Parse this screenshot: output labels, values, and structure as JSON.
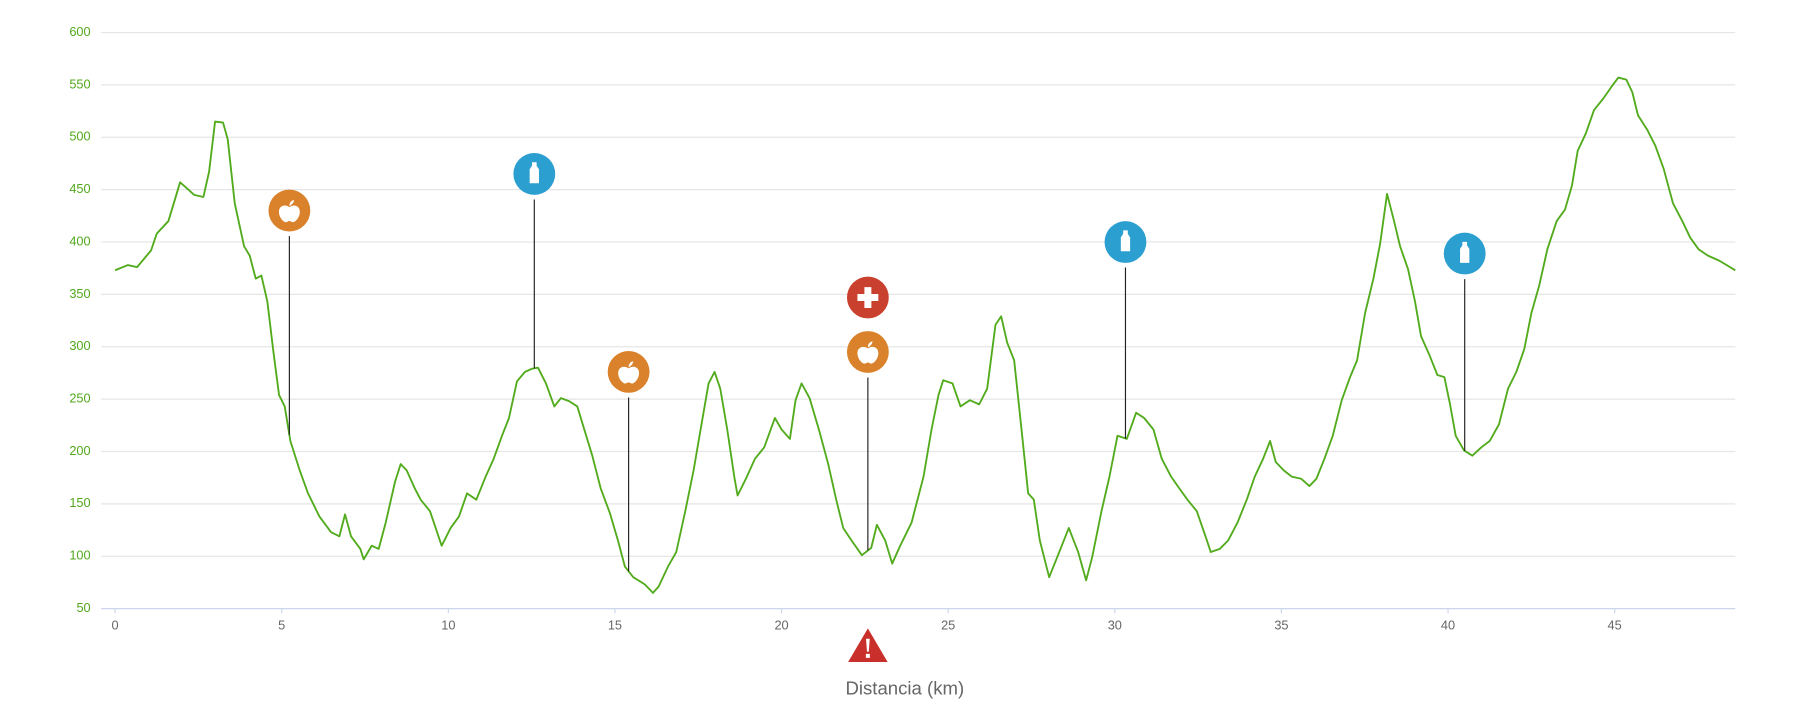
{
  "chart_data": {
    "type": "line",
    "x_label": "Distancia (km)",
    "color": "#52ab1c",
    "grid": true,
    "xlim": [
      -0.42,
      48.62
    ],
    "ylim": [
      50,
      600
    ],
    "xticks": [
      0,
      5,
      10,
      15,
      20,
      25,
      30,
      35,
      40,
      45
    ],
    "yticks": [
      50,
      100,
      150,
      200,
      250,
      300,
      350,
      400,
      450,
      500,
      550,
      600
    ],
    "x": [
      0,
      0.38,
      0.66,
      1.08,
      1.25,
      1.6,
      1.95,
      2.13,
      2.37,
      2.65,
      2.82,
      3.0,
      3.24,
      3.38,
      3.59,
      3.87,
      4.04,
      4.22,
      4.39,
      4.57,
      4.74,
      4.92,
      5.09,
      5.26,
      5.54,
      5.79,
      6.13,
      6.48,
      6.73,
      6.9,
      7.08,
      7.36,
      7.46,
      7.7,
      7.91,
      8.12,
      8.4,
      8.57,
      8.75,
      8.99,
      9.17,
      9.45,
      9.8,
      10.07,
      10.32,
      10.56,
      10.84,
      11.12,
      11.36,
      11.61,
      11.82,
      12.06,
      12.3,
      12.51,
      12.69,
      12.93,
      13.18,
      13.38,
      13.63,
      13.87,
      14.08,
      14.32,
      14.57,
      14.85,
      15.09,
      15.3,
      15.55,
      15.9,
      16.14,
      16.31,
      16.59,
      16.84,
      17.11,
      17.36,
      17.57,
      17.81,
      17.99,
      18.16,
      18.37,
      18.58,
      18.68,
      18.93,
      19.2,
      19.48,
      19.8,
      20.0,
      20.25,
      20.42,
      20.6,
      20.84,
      21.12,
      21.4,
      21.64,
      21.85,
      22.1,
      22.41,
      22.69,
      22.86,
      23.11,
      23.32,
      23.56,
      23.9,
      24.26,
      24.5,
      24.71,
      24.85,
      25.13,
      25.37,
      25.65,
      25.93,
      26.17,
      26.42,
      26.59,
      26.77,
      26.98,
      27.22,
      27.4,
      27.57,
      27.75,
      28.03,
      28.27,
      28.62,
      28.9,
      29.14,
      29.32,
      29.6,
      29.84,
      30.08,
      30.36,
      30.64,
      30.88,
      31.16,
      31.41,
      31.69,
      31.93,
      32.18,
      32.46,
      32.7,
      32.88,
      33.15,
      33.4,
      33.68,
      33.96,
      34.2,
      34.45,
      34.66,
      34.83,
      35.07,
      35.31,
      35.59,
      35.84,
      36.05,
      36.29,
      36.54,
      36.81,
      37.06,
      37.27,
      37.51,
      37.76,
      37.96,
      38.17,
      38.38,
      38.56,
      38.8,
      39.01,
      39.19,
      39.43,
      39.68,
      39.89,
      40.06,
      40.23,
      40.48,
      40.73,
      41.0,
      41.25,
      41.53,
      41.8,
      42.05,
      42.29,
      42.5,
      42.74,
      42.98,
      43.26,
      43.51,
      43.72,
      43.89,
      44.14,
      44.38,
      44.66,
      44.9,
      45.11,
      45.35,
      45.53,
      45.7,
      45.98,
      46.22,
      46.47,
      46.75,
      47.03,
      47.27,
      47.52,
      47.8,
      48.15,
      48.62
    ],
    "values": [
      373,
      378,
      376,
      392,
      408,
      420,
      457,
      452,
      445,
      443,
      467,
      515,
      514,
      498,
      437,
      396,
      387,
      365,
      368,
      343,
      298,
      254,
      243,
      210,
      182,
      160,
      138,
      123,
      119,
      140,
      119,
      107,
      97,
      110,
      107,
      132,
      171,
      188,
      182,
      165,
      154,
      143,
      110,
      127,
      138,
      160,
      154,
      176,
      193,
      215,
      232,
      267,
      276,
      279,
      280,
      265,
      243,
      251,
      248,
      243,
      221,
      196,
      165,
      141,
      115,
      90,
      80,
      73,
      65,
      71,
      90,
      104,
      143,
      182,
      221,
      265,
      276,
      260,
      221,
      176,
      158,
      174,
      193,
      204,
      232,
      221,
      212,
      249,
      265,
      251,
      221,
      188,
      154,
      127,
      115,
      101,
      108,
      130,
      115,
      93,
      110,
      132,
      176,
      221,
      254,
      268,
      265,
      243,
      249,
      245,
      260,
      321,
      329,
      304,
      287,
      215,
      160,
      154,
      115,
      80,
      99,
      127,
      104,
      77,
      99,
      143,
      176,
      215,
      212,
      237,
      232,
      221,
      193,
      176,
      165,
      154,
      143,
      121,
      104,
      107,
      115,
      132,
      154,
      176,
      193,
      210,
      190,
      182,
      176,
      174,
      167,
      174,
      193,
      215,
      249,
      271,
      287,
      332,
      365,
      398,
      446,
      420,
      396,
      374,
      343,
      310,
      293,
      273,
      271,
      245,
      215,
      201,
      196,
      204,
      210,
      226,
      260,
      276,
      298,
      332,
      359,
      393,
      420,
      431,
      454,
      487,
      504,
      526,
      537,
      548,
      557,
      555,
      543,
      521,
      507,
      492,
      470,
      437,
      420,
      404,
      393,
      387,
      382,
      373
    ],
    "markers": [
      {
        "kind": "food",
        "x": 5.23,
        "y": 430
      },
      {
        "kind": "water",
        "x": 12.58,
        "y": 465
      },
      {
        "kind": "food",
        "x": 15.41,
        "y": 276
      },
      {
        "kind": "medical",
        "x": 22.59,
        "y": 347
      },
      {
        "kind": "food",
        "x": 22.59,
        "y": 295
      },
      {
        "kind": "water",
        "x": 30.32,
        "y": 400
      },
      {
        "kind": "water",
        "x": 40.5,
        "y": 389
      }
    ],
    "alert_x": 22.59
  }
}
